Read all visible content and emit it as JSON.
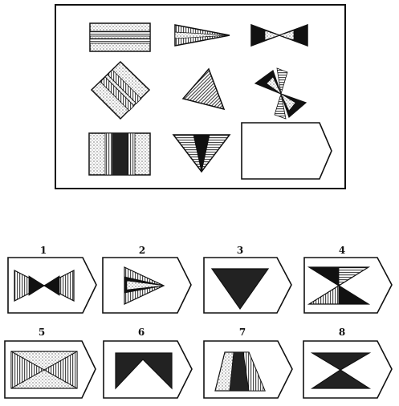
{
  "puzzle": {
    "matrix_cells": [
      {
        "figure": "horizontal-stripes-rectangle"
      },
      {
        "figure": "striped-triangle-pointing-right"
      },
      {
        "figure": "bowtie-horizontal"
      },
      {
        "figure": "diamond-with-stripes"
      },
      {
        "figure": "striped-triangle-rotated"
      },
      {
        "figure": "rotated-bowtie-pinwheel"
      },
      {
        "figure": "vertical-stripes-rectangle"
      },
      {
        "figure": "striped-triangle-pointing-down"
      },
      {
        "figure": "blank-answer-slot"
      }
    ],
    "options": [
      {
        "label": "1",
        "figure": "bowtie-with-striped-triangles"
      },
      {
        "label": "2",
        "figure": "triangle-pointing-right"
      },
      {
        "label": "3",
        "figure": "dark-triangle-pointing-down"
      },
      {
        "label": "4",
        "figure": "hourglass-half-striped"
      },
      {
        "label": "5",
        "figure": "rectangle-with-diagonals"
      },
      {
        "label": "6",
        "figure": "dark-m-shape"
      },
      {
        "label": "7",
        "figure": "trapezoid-split"
      },
      {
        "label": "8",
        "figure": "dark-hourglass"
      }
    ]
  }
}
